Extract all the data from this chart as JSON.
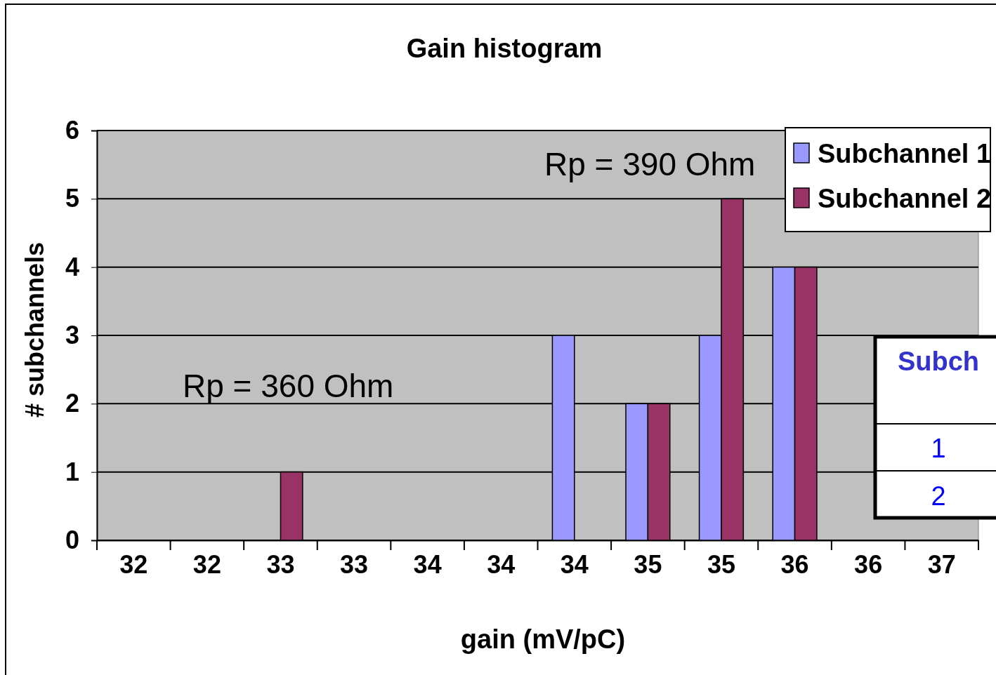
{
  "chart_data": {
    "type": "bar",
    "title": "Gain histogram",
    "xlabel": "gain (mV/pC)",
    "ylabel": "# subchannels",
    "categories": [
      "32",
      "32",
      "33",
      "33",
      "34",
      "34",
      "34",
      "35",
      "35",
      "36",
      "36",
      "37"
    ],
    "series": [
      {
        "name": "Subchannel 1",
        "color": "#9999ff",
        "values": [
          0,
          0,
          0,
          0,
          0,
          0,
          3,
          2,
          3,
          4,
          0,
          0
        ]
      },
      {
        "name": "Subchannel 2",
        "color": "#993366",
        "values": [
          0,
          0,
          1,
          0,
          0,
          0,
          0,
          2,
          5,
          4,
          0,
          0
        ]
      }
    ],
    "ylim": [
      0,
      6
    ],
    "yticks": [
      0,
      1,
      2,
      3,
      4,
      5,
      6
    ],
    "grid": "y",
    "legend": "top right",
    "annotations": [
      "Rp = 390 Ohm",
      "Rp = 360 Ohm",
      "Subch",
      "1",
      "2"
    ]
  }
}
